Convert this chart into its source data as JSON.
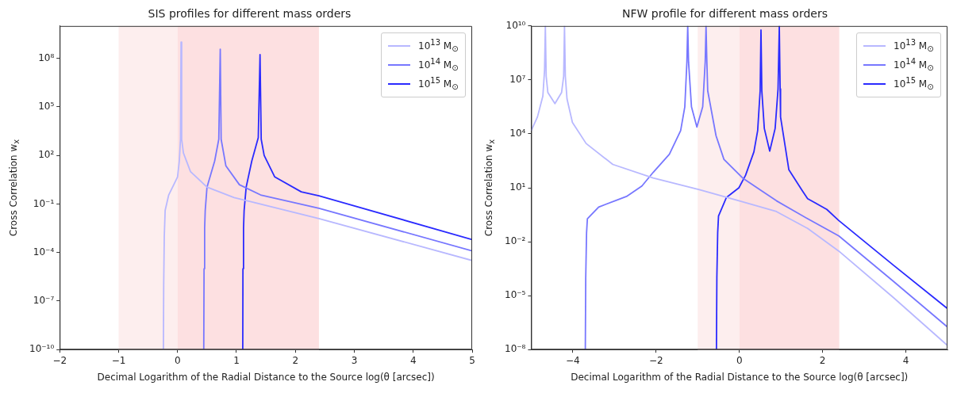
{
  "chart_data": [
    {
      "type": "line",
      "title": "SIS profiles for different mass orders",
      "xlabel": "Decimal Logarithm of the Radial Distance to the Source log(θ [arcsec])",
      "ylabel": "Cross Correlation w$_{x}$",
      "log": "y",
      "grid": false,
      "legend": "top right",
      "xlim": [
        -2,
        5
      ],
      "xticks": [
        {
          "value": -2,
          "label": "−2"
        },
        {
          "value": -1,
          "label": "−1"
        },
        0,
        1,
        2,
        3,
        4,
        5
      ],
      "ylim": [
        1e-10,
        10000000000.0
      ],
      "yticks": [
        {
          "value": 1e-10,
          "label": "10⁻¹⁰"
        },
        {
          "value": 1e-07,
          "label": "10⁻⁷"
        },
        {
          "value": 0.0001,
          "label": "10⁻⁴"
        },
        {
          "value": 0.1,
          "label": "10⁻¹"
        },
        {
          "value": 100,
          "label": "10²"
        },
        {
          "value": 100000.0,
          "label": "10⁵"
        },
        {
          "value": 100000000.0,
          "label": "10⁸"
        }
      ],
      "bands": [
        {
          "axis": "x",
          "from": -1,
          "to": 0,
          "color": "#fdeeee"
        },
        {
          "axis": "x",
          "from": 0,
          "to": 2.4,
          "color": "#fde0e1"
        }
      ],
      "series": [
        {
          "name": "10$^{13}$ M$_{⊙}$",
          "color": "#b8b8ff",
          "x": [
            -0.24,
            -0.235,
            -0.225,
            -0.21,
            -0.15,
            0.0,
            0.03,
            0.05,
            0.06,
            0.07,
            0.1,
            0.22,
            0.5,
            0.96,
            2.4,
            5
          ],
          "values": [
            1e-10,
            1e-06,
            0.001,
            0.04,
            0.36,
            4.7,
            45,
            1000,
            1000000000.0,
            1000,
            140,
            10,
            1.1,
            0.25,
            0.0126,
            3.2e-05
          ]
        },
        {
          "name": "10$^{14}$ M$_{⊙}$",
          "color": "#7777ff",
          "x": [
            0.445,
            0.45,
            0.46,
            0.47,
            0.5,
            0.63,
            0.7,
            0.725,
            0.74,
            0.82,
            1.05,
            1.41,
            2.4,
            5
          ],
          "values": [
            1e-10,
            1e-05,
            0.0032,
            0.04,
            1.1,
            45,
            1000,
            370000000.0,
            1000,
            23,
            1.55,
            0.36,
            0.054,
            0.000126
          ]
        },
        {
          "name": "10$^{15}$ M$_{⊙}$",
          "color": "#2a2aff",
          "x": [
            1.107,
            1.11,
            1.12,
            1.13,
            1.165,
            1.26,
            1.37,
            1.4,
            1.42,
            1.47,
            1.65,
            2.1,
            2.4,
            5
          ],
          "values": [
            1e-10,
            1e-05,
            0.0032,
            0.04,
            1.1,
            45,
            1260,
            170000000.0,
            1000,
            100,
            4.7,
            0.56,
            0.32,
            0.00063
          ]
        }
      ]
    },
    {
      "type": "line",
      "title": "NFW profile for different mass orders",
      "xlabel": "Decimal Logarithm of the Radial Distance to the Source log(θ [arcsec])",
      "ylabel": "Cross Correlation w$_{x}$",
      "log": "y",
      "grid": false,
      "legend": "top right",
      "xlim": [
        -5,
        5
      ],
      "xticks": [
        {
          "value": -4,
          "label": "−4"
        },
        {
          "value": -2,
          "label": "−2"
        },
        0,
        2,
        4
      ],
      "ylim": [
        1e-08,
        10000000000.0
      ],
      "yticks": [
        {
          "value": 1e-08,
          "label": "10⁻⁸"
        },
        {
          "value": 1e-05,
          "label": "10⁻⁵"
        },
        {
          "value": 0.01,
          "label": "10⁻²"
        },
        {
          "value": 10,
          "label": "10¹"
        },
        {
          "value": 10000.0,
          "label": "10⁴"
        },
        {
          "value": 10000000.0,
          "label": "10⁷"
        },
        {
          "value": 10000000000.0,
          "label": "10¹⁰"
        }
      ],
      "bands": [
        {
          "axis": "x",
          "from": -1,
          "to": 0,
          "color": "#fdeeee"
        },
        {
          "axis": "x",
          "from": 0,
          "to": 2.4,
          "color": "#fde0e1"
        }
      ],
      "series": [
        {
          "name": "10$^{13}$ M$_{⊙}$",
          "color": "#b8b8ff",
          "x": [
            -5,
            -4.85,
            -4.72,
            -4.68,
            -4.66,
            -4.64,
            -4.6,
            -4.43,
            -4.27,
            -4.22,
            -4.2,
            -4.18,
            -4.14,
            -4.01,
            -3.68,
            -3.04,
            -2.07,
            -0.96,
            -0.01,
            0.89,
            1.64,
            2.39,
            3.7,
            5
          ],
          "values": [
            15000.0,
            87000.0,
            1260000.0,
            32000000.0,
            10000000000.0,
            16000000.0,
            2000000.0,
            480000.0,
            2000000.0,
            16000000.0,
            10000000000.0,
            16000000.0,
            890000.0,
            43000.0,
            2900,
            200,
            35,
            7.9,
            1.9,
            0.48,
            0.055,
            0.003,
            7.9e-06,
            1.7e-08
          ]
        },
        {
          "name": "10$^{14}$ M$_{⊙}$",
          "color": "#7777ff",
          "x": [
            -3.7,
            -3.69,
            -3.67,
            -3.65,
            -3.38,
            -2.71,
            -2.34,
            -2.07,
            -1.68,
            -1.41,
            -1.31,
            -1.26,
            -1.24,
            -1.22,
            -1.15,
            -1.02,
            -0.88,
            -0.82,
            -0.8,
            -0.78,
            -0.76,
            -0.56,
            -0.37,
            0.08,
            0.54,
            0.89,
            1.64,
            2.39,
            3.7,
            5
          ],
          "values": [
            1e-08,
            0.0001,
            0.032,
            0.19,
            0.85,
            3.3,
            12.6,
            72,
            740,
            15000.0,
            320000.0,
            100000000.0,
            10000000000.0,
            100000000.0,
            320000.0,
            24000.0,
            320000.0,
            100000000.0,
            10000000000.0,
            100000000.0,
            2500000.0,
            7900,
            380,
            35,
            6.6,
            1.9,
            0.19,
            0.021,
            6.3e-05,
            1.8e-07
          ]
        },
        {
          "name": "10$^{15}$ M$_{⊙}$",
          "color": "#2a2aff",
          "x": [
            -0.55,
            -0.54,
            -0.52,
            -0.5,
            -0.31,
            -0.01,
            0.15,
            0.35,
            0.44,
            0.5,
            0.52,
            0.54,
            0.6,
            0.73,
            0.86,
            0.93,
            0.96,
            0.98,
            0.99,
            1.19,
            1.51,
            1.64,
            2.1,
            2.39,
            3.7,
            5
          ],
          "values": [
            1e-08,
            0.0001,
            0.032,
            0.27,
            2.9,
            10,
            50,
            1000,
            15000.0,
            2500000.0,
            6000000000.0,
            2500000.0,
            20000.0,
            1100,
            20000.0,
            3200000.0,
            10000000000.0,
            3200000.0,
            87000.0,
            100,
            7,
            2.5,
            0.63,
            0.15,
            0.0005,
            1.9e-06
          ]
        }
      ]
    }
  ]
}
